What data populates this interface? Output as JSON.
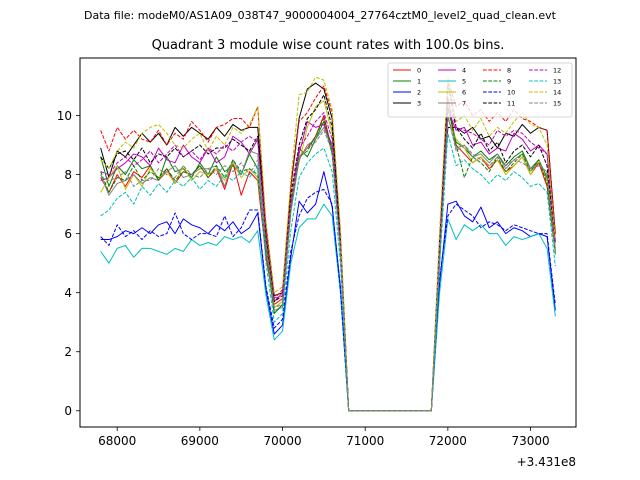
{
  "chart_data": {
    "type": "line",
    "suptitle": "Data file: modeM0/AS1A09_038T47_9000004004_27764cztM0_level2_quad_clean.evt",
    "title": "Quadrant 3 module wise count rates with 100.0s bins.",
    "xlabel": "",
    "ylabel": "",
    "x_offset_label": "+3.431e8",
    "x_offset": 343100000,
    "xlim": [
      67550,
      73550
    ],
    "ylim": [
      -0.55,
      11.95
    ],
    "xticks": [
      68000,
      69000,
      70000,
      71000,
      72000,
      73000
    ],
    "xtick_labels": [
      "68000",
      "69000",
      "70000",
      "71000",
      "72000",
      "73000"
    ],
    "yticks": [
      0,
      2,
      4,
      6,
      8,
      10
    ],
    "ytick_labels": [
      "0",
      "2",
      "4",
      "6",
      "8",
      "10"
    ],
    "grid": false,
    "legend_placement": "upper right",
    "legend_columns": 4,
    "x": [
      67800,
      67900,
      68000,
      68100,
      68200,
      68300,
      68400,
      68500,
      68600,
      68700,
      68800,
      68900,
      69000,
      69100,
      69200,
      69300,
      69400,
      69500,
      69600,
      69700,
      69800,
      69900,
      70000,
      70100,
      70200,
      70300,
      70400,
      70500,
      70600,
      70700,
      70800,
      70900,
      71000,
      71100,
      71200,
      71300,
      71400,
      71500,
      71600,
      71700,
      71800,
      71900,
      72000,
      72100,
      72200,
      72300,
      72400,
      72500,
      72600,
      72700,
      72800,
      72900,
      73000,
      73100,
      73200,
      73300
    ],
    "series": [
      {
        "name": "0",
        "color": "#ff0000",
        "dash": "solid",
        "values": [
          7.9,
          7.4,
          8.0,
          7.6,
          8.1,
          7.9,
          8.3,
          7.8,
          8.2,
          7.7,
          8.1,
          8.0,
          8.3,
          7.9,
          8.2,
          7.5,
          8.4,
          7.3,
          8.1,
          7.8,
          5.2,
          3.6,
          3.8,
          6.9,
          8.6,
          8.9,
          9.3,
          10.0,
          8.8,
          5.5,
          0,
          0,
          0,
          0,
          0,
          0,
          0,
          0,
          0,
          0,
          0,
          5.0,
          10.6,
          9.0,
          8.7,
          8.4,
          8.6,
          8.2,
          8.5,
          8.1,
          8.3,
          8.6,
          8.0,
          8.4,
          7.6,
          5.4
        ]
      },
      {
        "name": "1",
        "color": "#008000",
        "dash": "solid",
        "values": [
          8.6,
          7.6,
          8.3,
          8.0,
          8.5,
          8.2,
          8.3,
          7.8,
          8.6,
          8.1,
          8.2,
          7.9,
          8.4,
          8.0,
          8.6,
          8.1,
          8.3,
          8.0,
          8.7,
          8.2,
          5.4,
          3.3,
          3.6,
          6.8,
          8.9,
          8.6,
          9.2,
          9.8,
          8.7,
          5.6,
          0,
          0,
          0,
          0,
          0,
          0,
          0,
          0,
          0,
          0,
          0,
          5.2,
          10.3,
          9.1,
          8.9,
          8.6,
          8.8,
          8.5,
          8.7,
          8.3,
          8.6,
          8.8,
          8.2,
          8.5,
          7.9,
          5.5
        ]
      },
      {
        "name": "2",
        "color": "#0000ff",
        "dash": "solid",
        "values": [
          5.8,
          5.8,
          5.9,
          6.1,
          6.0,
          6.2,
          6.0,
          6.3,
          6.4,
          6.0,
          6.5,
          6.3,
          6.2,
          6.0,
          6.3,
          6.1,
          6.4,
          6.0,
          6.2,
          6.7,
          4.1,
          2.6,
          2.9,
          5.2,
          7.1,
          6.7,
          7.0,
          8.1,
          6.9,
          4.2,
          0,
          0,
          0,
          0,
          0,
          0,
          0,
          0,
          0,
          0,
          0,
          4.3,
          7.0,
          7.1,
          6.6,
          6.4,
          6.9,
          6.2,
          6.4,
          6.0,
          6.2,
          6.1,
          5.9,
          6.0,
          5.9,
          3.4
        ]
      },
      {
        "name": "3",
        "color": "#000000",
        "dash": "solid",
        "values": [
          8.9,
          7.9,
          8.8,
          8.6,
          9.0,
          9.4,
          9.1,
          9.4,
          9.0,
          9.6,
          9.3,
          9.6,
          9.4,
          9.2,
          9.6,
          9.3,
          9.7,
          9.5,
          9.6,
          9.6,
          6.3,
          3.9,
          4.0,
          7.6,
          9.9,
          10.9,
          11.1,
          10.9,
          9.9,
          5.9,
          0,
          0,
          0,
          0,
          0,
          0,
          0,
          0,
          0,
          0,
          0,
          5.8,
          9.6,
          9.6,
          9.4,
          9.6,
          9.2,
          9.3,
          8.9,
          9.4,
          9.3,
          9.7,
          9.4,
          9.6,
          9.5,
          6.0
        ]
      },
      {
        "name": "4",
        "color": "#bf00bf",
        "dash": "solid",
        "values": [
          7.8,
          7.9,
          8.2,
          8.4,
          8.7,
          8.6,
          8.3,
          8.9,
          8.5,
          8.4,
          9.0,
          8.6,
          8.4,
          8.9,
          8.4,
          8.6,
          9.3,
          9.1,
          8.7,
          9.2,
          6.0,
          3.7,
          4.0,
          7.0,
          8.7,
          9.8,
          9.6,
          9.7,
          9.0,
          5.7,
          0,
          0,
          0,
          0,
          0,
          0,
          0,
          0,
          0,
          0,
          0,
          5.3,
          10.2,
          9.5,
          9.6,
          9.0,
          9.1,
          8.7,
          8.9,
          8.8,
          9.4,
          9.2,
          8.8,
          9.0,
          8.7,
          5.8
        ]
      },
      {
        "name": "5",
        "color": "#00bfbf",
        "dash": "solid",
        "values": [
          5.4,
          5.0,
          5.5,
          5.6,
          5.2,
          5.5,
          5.5,
          5.4,
          5.3,
          5.5,
          5.4,
          5.8,
          5.6,
          5.7,
          5.6,
          5.9,
          5.8,
          5.9,
          5.7,
          6.1,
          3.9,
          2.4,
          2.7,
          5.0,
          6.2,
          6.5,
          6.5,
          7.0,
          6.6,
          4.0,
          0,
          0,
          0,
          0,
          0,
          0,
          0,
          0,
          0,
          0,
          0,
          4.0,
          6.5,
          5.8,
          6.3,
          6.1,
          6.3,
          6.0,
          6.0,
          5.6,
          5.9,
          5.8,
          5.9,
          6.0,
          5.5,
          3.2
        ]
      },
      {
        "name": "6",
        "color": "#bfbf00",
        "dash": "solid",
        "values": [
          7.4,
          7.9,
          8.3,
          7.5,
          8.0,
          7.6,
          8.2,
          7.9,
          8.1,
          7.7,
          8.3,
          7.8,
          8.1,
          8.0,
          8.2,
          7.8,
          8.4,
          7.9,
          8.2,
          7.9,
          5.7,
          3.5,
          3.7,
          7.2,
          8.4,
          9.6,
          10.3,
          10.5,
          9.4,
          5.3,
          0,
          0,
          0,
          0,
          0,
          0,
          0,
          0,
          0,
          0,
          0,
          5.4,
          9.9,
          9.2,
          8.9,
          8.4,
          8.6,
          8.3,
          8.5,
          8.0,
          8.3,
          8.6,
          8.0,
          8.5,
          7.8,
          5.5
        ]
      },
      {
        "name": "7",
        "color": "#808080",
        "dash": "solid",
        "values": [
          8.0,
          7.3,
          7.7,
          7.8,
          8.0,
          7.7,
          7.9,
          7.8,
          8.1,
          8.3,
          7.9,
          8.0,
          8.2,
          8.2,
          8.3,
          7.6,
          8.5,
          8.0,
          8.8,
          8.7,
          5.5,
          3.4,
          3.5,
          6.7,
          8.5,
          9.0,
          9.2,
          9.6,
          8.9,
          5.4,
          0,
          0,
          0,
          0,
          0,
          0,
          0,
          0,
          0,
          0,
          0,
          5.1,
          10.0,
          8.9,
          9.0,
          8.6,
          8.7,
          8.4,
          8.7,
          8.2,
          8.5,
          8.7,
          8.2,
          8.3,
          8.1,
          5.4
        ]
      },
      {
        "name": "8",
        "color": "#ff0000",
        "dash": "dashed",
        "values": [
          9.5,
          8.8,
          9.6,
          9.2,
          9.5,
          9.2,
          9.1,
          9.5,
          9.0,
          9.4,
          9.2,
          9.8,
          9.5,
          9.1,
          9.6,
          9.7,
          9.9,
          9.9,
          9.6,
          10.3,
          6.2,
          3.8,
          4.1,
          7.5,
          9.8,
          10.1,
          10.6,
          11.0,
          10.1,
          6.1,
          0,
          0,
          0,
          0,
          0,
          0,
          0,
          0,
          0,
          0,
          0,
          5.9,
          11.2,
          10.3,
          10.5,
          10.0,
          10.2,
          9.8,
          10.1,
          9.8,
          10.2,
          9.9,
          9.8,
          9.6,
          9.5,
          6.0
        ]
      },
      {
        "name": "9",
        "color": "#008000",
        "dash": "dashed",
        "values": [
          8.1,
          7.4,
          7.9,
          7.8,
          8.3,
          7.8,
          8.1,
          7.9,
          8.2,
          7.8,
          8.1,
          8.0,
          8.3,
          7.9,
          8.3,
          7.9,
          8.5,
          8.1,
          8.2,
          8.0,
          5.6,
          3.3,
          3.6,
          6.9,
          8.6,
          8.8,
          9.3,
          9.9,
          8.8,
          5.6,
          0,
          0,
          0,
          0,
          0,
          0,
          0,
          0,
          0,
          0,
          0,
          5.1,
          10.3,
          9.0,
          7.9,
          8.6,
          8.4,
          8.1,
          8.6,
          8.1,
          8.4,
          8.7,
          8.1,
          8.5,
          7.7,
          5.3
        ]
      },
      {
        "name": "10",
        "color": "#0000ff",
        "dash": "dashed",
        "values": [
          5.9,
          5.6,
          6.3,
          5.9,
          6.1,
          5.8,
          6.1,
          5.9,
          6.0,
          6.7,
          6.0,
          5.8,
          6.0,
          6.0,
          5.9,
          6.6,
          5.9,
          6.2,
          6.8,
          6.8,
          4.2,
          2.8,
          3.1,
          5.4,
          6.6,
          7.2,
          7.4,
          7.5,
          7.0,
          4.1,
          0,
          0,
          0,
          0,
          0,
          0,
          0,
          0,
          0,
          0,
          0,
          4.5,
          6.6,
          7.0,
          6.8,
          6.6,
          6.2,
          6.4,
          6.3,
          6.1,
          6.3,
          6.2,
          6.1,
          6.0,
          6.0,
          3.6
        ]
      },
      {
        "name": "11",
        "color": "#000000",
        "dash": "dashed",
        "values": [
          8.6,
          8.2,
          8.7,
          8.8,
          8.5,
          8.9,
          8.4,
          8.7,
          8.6,
          8.9,
          8.6,
          8.8,
          9.0,
          8.7,
          8.9,
          8.9,
          9.2,
          9.0,
          8.8,
          9.3,
          5.9,
          3.7,
          3.9,
          7.3,
          9.0,
          9.9,
          10.2,
          10.7,
          9.6,
          5.8,
          0,
          0,
          0,
          0,
          0,
          0,
          0,
          0,
          0,
          0,
          0,
          5.6,
          11.1,
          9.6,
          9.2,
          8.9,
          9.4,
          8.8,
          9.1,
          8.4,
          8.8,
          9.0,
          8.6,
          9.0,
          8.3,
          5.7
        ]
      },
      {
        "name": "12",
        "color": "#bf00bf",
        "dash": "dashed",
        "values": [
          8.1,
          8.0,
          8.4,
          8.6,
          8.3,
          8.5,
          8.8,
          8.4,
          8.7,
          9.0,
          8.6,
          8.8,
          8.5,
          8.9,
          8.7,
          9.0,
          8.8,
          9.1,
          9.3,
          9.1,
          6.0,
          3.8,
          3.9,
          7.1,
          8.9,
          9.3,
          9.8,
          10.1,
          9.2,
          5.6,
          0,
          0,
          0,
          0,
          0,
          0,
          0,
          0,
          0,
          0,
          0,
          5.5,
          10.5,
          9.6,
          9.5,
          9.4,
          9.2,
          9.0,
          9.5,
          9.3,
          9.5,
          9.4,
          9.1,
          8.9,
          8.7,
          5.7
        ]
      },
      {
        "name": "13",
        "color": "#00bfbf",
        "dash": "dashed",
        "values": [
          6.6,
          6.8,
          7.2,
          7.4,
          7.0,
          7.6,
          7.3,
          7.7,
          7.4,
          7.8,
          7.6,
          7.9,
          7.5,
          7.8,
          7.6,
          8.0,
          7.8,
          8.1,
          7.9,
          8.3,
          5.0,
          3.0,
          3.3,
          6.1,
          7.9,
          8.4,
          8.7,
          8.9,
          8.1,
          5.0,
          0,
          0,
          0,
          0,
          0,
          0,
          0,
          0,
          0,
          0,
          0,
          4.9,
          9.4,
          8.3,
          8.5,
          8.2,
          8.0,
          7.7,
          8.0,
          7.8,
          8.1,
          7.9,
          7.6,
          7.7,
          7.4,
          4.9
        ]
      },
      {
        "name": "14",
        "color": "#bfbf00",
        "dash": "dashed",
        "values": [
          8.5,
          8.2,
          8.8,
          9.1,
          8.9,
          9.4,
          9.6,
          9.7,
          9.4,
          9.0,
          8.9,
          9.2,
          9.4,
          8.8,
          9.3,
          9.0,
          9.6,
          9.4,
          9.7,
          10.3,
          6.4,
          4.0,
          4.2,
          7.8,
          10.7,
          10.8,
          11.3,
          11.2,
          10.2,
          6.2,
          0,
          0,
          0,
          0,
          0,
          0,
          0,
          0,
          0,
          0,
          0,
          6.1,
          11.3,
          9.8,
          10.0,
          9.5,
          9.9,
          9.3,
          9.6,
          9.4,
          9.8,
          10.1,
          9.7,
          9.6,
          9.0,
          5.8
        ]
      },
      {
        "name": "15",
        "color": "#808080",
        "dash": "dashed",
        "values": [
          7.9,
          7.8,
          7.9,
          8.1,
          7.6,
          7.8,
          7.8,
          8.2,
          8.0,
          7.9,
          8.3,
          8.0,
          7.9,
          8.2,
          8.0,
          8.3,
          8.1,
          8.4,
          8.0,
          8.5,
          5.5,
          3.5,
          3.6,
          6.8,
          8.6,
          8.9,
          9.1,
          9.5,
          8.8,
          5.4,
          0,
          0,
          0,
          0,
          0,
          0,
          0,
          0,
          0,
          0,
          0,
          5.2,
          10.0,
          8.8,
          9.0,
          8.7,
          8.5,
          8.3,
          8.6,
          8.3,
          8.5,
          8.4,
          8.2,
          8.4,
          8.0,
          5.4
        ]
      }
    ]
  }
}
